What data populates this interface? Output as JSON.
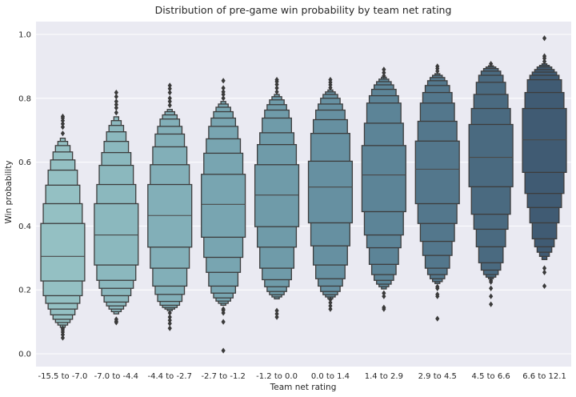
{
  "chart_data": {
    "type": "boxen",
    "title": "Distribution of pre-game win probability by team net rating",
    "xlabel": "Team net rating",
    "ylabel": "Win probability",
    "ylim": [
      -0.04,
      1.04
    ],
    "yticks": [
      0.0,
      0.2,
      0.4,
      0.6,
      0.8,
      1.0
    ],
    "ytick_labels": [
      "0.0",
      "0.2",
      "0.4",
      "0.6",
      "0.8",
      "1.0"
    ],
    "grid": true,
    "legend": "none",
    "background": "#eaeaf2",
    "categories": [
      "-15.5 to -7.0",
      "-7.0 to -4.4",
      "-4.4 to -2.7",
      "-2.7 to -1.2",
      "-1.2 to 0.0",
      "0.0 to 1.4",
      "1.4 to 2.9",
      "2.9 to 4.5",
      "4.5 to 6.6",
      "6.6 to 12.1"
    ],
    "colors": [
      "#94c0c3",
      "#8bb8be",
      "#82afb8",
      "#78a5b1",
      "#6f9ba9",
      "#6690a1",
      "#5c8497",
      "#53778c",
      "#4a6a80",
      "#405b73"
    ],
    "series": [
      {
        "median": 0.305,
        "levels": [
          [
            0.228,
            0.408
          ],
          [
            0.182,
            0.47
          ],
          [
            0.158,
            0.528
          ],
          [
            0.14,
            0.575
          ],
          [
            0.122,
            0.607
          ],
          [
            0.108,
            0.632
          ],
          [
            0.098,
            0.652
          ],
          [
            0.09,
            0.665
          ],
          [
            0.083,
            0.675
          ]
        ],
        "outliers": [
          0.05,
          0.06,
          0.068,
          0.075,
          0.08,
          0.69,
          0.71,
          0.72,
          0.73,
          0.738,
          0.743
        ]
      },
      {
        "median": 0.372,
        "levels": [
          [
            0.278,
            0.47
          ],
          [
            0.23,
            0.53
          ],
          [
            0.205,
            0.59
          ],
          [
            0.182,
            0.63
          ],
          [
            0.162,
            0.665
          ],
          [
            0.15,
            0.695
          ],
          [
            0.14,
            0.715
          ],
          [
            0.132,
            0.73
          ],
          [
            0.125,
            0.742
          ]
        ],
        "outliers": [
          0.098,
          0.102,
          0.108,
          0.755,
          0.77,
          0.78,
          0.79,
          0.805,
          0.818
        ]
      },
      {
        "median": 0.433,
        "levels": [
          [
            0.334,
            0.53
          ],
          [
            0.268,
            0.592
          ],
          [
            0.212,
            0.648
          ],
          [
            0.186,
            0.688
          ],
          [
            0.164,
            0.712
          ],
          [
            0.152,
            0.735
          ],
          [
            0.145,
            0.748
          ],
          [
            0.14,
            0.758
          ],
          [
            0.135,
            0.765
          ]
        ],
        "outliers": [
          0.08,
          0.095,
          0.105,
          0.115,
          0.128,
          0.778,
          0.79,
          0.8,
          0.818,
          0.83,
          0.84
        ]
      },
      {
        "median": 0.468,
        "levels": [
          [
            0.365,
            0.562
          ],
          [
            0.302,
            0.628
          ],
          [
            0.255,
            0.673
          ],
          [
            0.212,
            0.712
          ],
          [
            0.19,
            0.738
          ],
          [
            0.175,
            0.758
          ],
          [
            0.165,
            0.772
          ],
          [
            0.158,
            0.782
          ],
          [
            0.152,
            0.79
          ]
        ],
        "outliers": [
          0.01,
          0.1,
          0.128,
          0.136,
          0.14,
          0.8,
          0.812,
          0.82,
          0.832,
          0.855
        ]
      },
      {
        "median": 0.497,
        "levels": [
          [
            0.398,
            0.592
          ],
          [
            0.334,
            0.655
          ],
          [
            0.268,
            0.692
          ],
          [
            0.232,
            0.738
          ],
          [
            0.21,
            0.763
          ],
          [
            0.195,
            0.78
          ],
          [
            0.185,
            0.795
          ],
          [
            0.178,
            0.805
          ],
          [
            0.172,
            0.812
          ]
        ],
        "outliers": [
          0.115,
          0.125,
          0.135,
          0.82,
          0.832,
          0.843,
          0.852,
          0.858
        ]
      },
      {
        "median": 0.522,
        "levels": [
          [
            0.41,
            0.603
          ],
          [
            0.338,
            0.69
          ],
          [
            0.278,
            0.733
          ],
          [
            0.235,
            0.763
          ],
          [
            0.212,
            0.782
          ],
          [
            0.195,
            0.8
          ],
          [
            0.185,
            0.812
          ],
          [
            0.178,
            0.82
          ],
          [
            0.172,
            0.826
          ]
        ],
        "outliers": [
          0.14,
          0.15,
          0.16,
          0.17,
          0.833,
          0.842,
          0.85,
          0.858
        ]
      },
      {
        "median": 0.56,
        "levels": [
          [
            0.445,
            0.652
          ],
          [
            0.372,
            0.722
          ],
          [
            0.332,
            0.785
          ],
          [
            0.28,
            0.808
          ],
          [
            0.248,
            0.828
          ],
          [
            0.23,
            0.842
          ],
          [
            0.218,
            0.852
          ],
          [
            0.21,
            0.86
          ],
          [
            0.203,
            0.866
          ]
        ],
        "outliers": [
          0.14,
          0.145,
          0.18,
          0.19,
          0.87,
          0.88,
          0.89
        ]
      },
      {
        "median": 0.578,
        "levels": [
          [
            0.47,
            0.666
          ],
          [
            0.408,
            0.728
          ],
          [
            0.352,
            0.785
          ],
          [
            0.308,
            0.818
          ],
          [
            0.268,
            0.84
          ],
          [
            0.248,
            0.855
          ],
          [
            0.235,
            0.865
          ],
          [
            0.226,
            0.872
          ],
          [
            0.22,
            0.877
          ]
        ],
        "outliers": [
          0.11,
          0.18,
          0.186,
          0.205,
          0.21,
          0.885,
          0.893,
          0.9
        ]
      },
      {
        "median": 0.615,
        "levels": [
          [
            0.523,
            0.718
          ],
          [
            0.437,
            0.768
          ],
          [
            0.39,
            0.812
          ],
          [
            0.335,
            0.85
          ],
          [
            0.285,
            0.872
          ],
          [
            0.262,
            0.885
          ],
          [
            0.248,
            0.893
          ],
          [
            0.24,
            0.898
          ],
          [
            0.235,
            0.902
          ]
        ],
        "outliers": [
          0.155,
          0.18,
          0.205,
          0.225,
          0.23,
          0.908
        ]
      },
      {
        "median": 0.67,
        "levels": [
          [
            0.568,
            0.768
          ],
          [
            0.502,
            0.818
          ],
          [
            0.458,
            0.858
          ],
          [
            0.41,
            0.872
          ],
          [
            0.36,
            0.882
          ],
          [
            0.335,
            0.89
          ],
          [
            0.318,
            0.898
          ],
          [
            0.305,
            0.903
          ],
          [
            0.295,
            0.908
          ]
        ],
        "outliers": [
          0.212,
          0.255,
          0.268,
          0.915,
          0.925,
          0.932,
          0.988
        ]
      }
    ]
  }
}
